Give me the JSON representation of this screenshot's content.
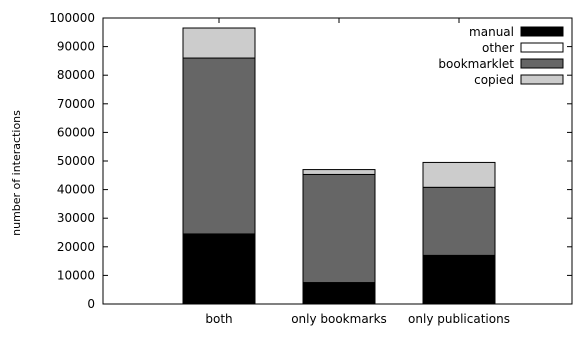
{
  "chart_data": {
    "type": "bar",
    "stacked": true,
    "categories": [
      "both",
      "only bookmarks",
      "only publications"
    ],
    "series": [
      {
        "name": "manual",
        "color": "#000000",
        "values": [
          24500,
          7500,
          17000
        ]
      },
      {
        "name": "other",
        "color": "#ffffff",
        "values": [
          0,
          0,
          0
        ]
      },
      {
        "name": "bookmarklet",
        "color": "#666666",
        "values": [
          61500,
          37800,
          23800
        ]
      },
      {
        "name": "copied",
        "color": "#cccccc",
        "values": [
          10500,
          1700,
          8700
        ]
      }
    ],
    "stack_order": [
      "manual",
      "other",
      "bookmarklet",
      "copied"
    ],
    "title": "",
    "xlabel": "",
    "ylabel": "number of interactions",
    "ylim": [
      0,
      100000
    ],
    "yticks": [
      0,
      10000,
      20000,
      30000,
      40000,
      50000,
      60000,
      70000,
      80000,
      90000,
      100000
    ],
    "yticks_labels": [
      "0",
      "10000",
      "20000",
      "30000",
      "40000",
      "50000",
      "60000",
      "70000",
      "80000",
      "90000",
      "100000"
    ],
    "grid": false,
    "legend_position": "top-right"
  }
}
